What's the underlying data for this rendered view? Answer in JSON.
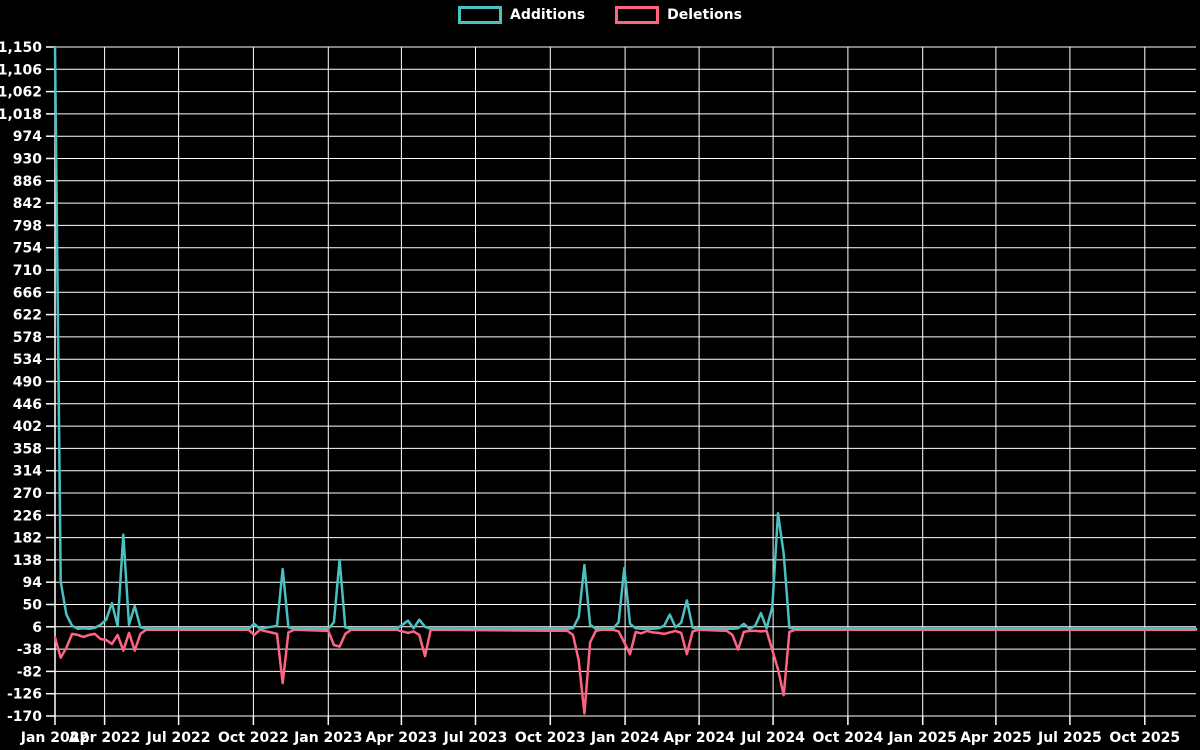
{
  "legend": {
    "position": "top",
    "items": [
      {
        "label": "Additions",
        "color": "#4bc0c0"
      },
      {
        "label": "Deletions",
        "color": "#ff6384"
      }
    ]
  },
  "chart_data": {
    "type": "line",
    "title": "",
    "background": "#000000",
    "grid_color": "#ffffff",
    "text_color": "#ffffff",
    "grid": true,
    "x_axis": {
      "type": "time",
      "min": "2022-01-30",
      "max": "2025-12-03",
      "ticks": [
        {
          "label": "Jan 2022",
          "date": "2022-01-30"
        },
        {
          "label": "Apr 2022",
          "date": "2022-04-01"
        },
        {
          "label": "Jul 2022",
          "date": "2022-07-01"
        },
        {
          "label": "Oct 2022",
          "date": "2022-10-01"
        },
        {
          "label": "Jan 2023",
          "date": "2023-01-01"
        },
        {
          "label": "Apr 2023",
          "date": "2023-04-01"
        },
        {
          "label": "Jul 2023",
          "date": "2023-07-01"
        },
        {
          "label": "Oct 2023",
          "date": "2023-10-01"
        },
        {
          "label": "Jan 2024",
          "date": "2024-01-01"
        },
        {
          "label": "Apr 2024",
          "date": "2024-04-01"
        },
        {
          "label": "Jul 2024",
          "date": "2024-07-01"
        },
        {
          "label": "Oct 2024",
          "date": "2024-10-01"
        },
        {
          "label": "Jan 2025",
          "date": "2025-01-01"
        },
        {
          "label": "Apr 2025",
          "date": "2025-04-01"
        },
        {
          "label": "Jul 2025",
          "date": "2025-07-01"
        },
        {
          "label": "Oct 2025",
          "date": "2025-10-01"
        }
      ]
    },
    "y_axis": {
      "min": -170,
      "max": 1150,
      "tick_step": 44,
      "ticks": [
        1150,
        1106,
        1062,
        1018,
        974,
        930,
        886,
        842,
        798,
        754,
        710,
        666,
        622,
        578,
        534,
        490,
        446,
        402,
        358,
        314,
        270,
        226,
        182,
        138,
        94,
        50,
        6,
        -38,
        -82,
        -126,
        -170
      ]
    },
    "series": [
      {
        "name": "Additions",
        "color": "#4bc0c0",
        "points": [
          [
            "2022-01-30",
            1150
          ],
          [
            "2022-02-06",
            95
          ],
          [
            "2022-02-13",
            30
          ],
          [
            "2022-02-20",
            8
          ],
          [
            "2022-02-27",
            2
          ],
          [
            "2022-03-06",
            3
          ],
          [
            "2022-03-13",
            2
          ],
          [
            "2022-03-20",
            4
          ],
          [
            "2022-03-27",
            10
          ],
          [
            "2022-04-03",
            20
          ],
          [
            "2022-04-10",
            53
          ],
          [
            "2022-04-17",
            8
          ],
          [
            "2022-04-24",
            188
          ],
          [
            "2022-05-01",
            10
          ],
          [
            "2022-05-08",
            47
          ],
          [
            "2022-05-15",
            5
          ],
          [
            "2022-05-22",
            2
          ],
          [
            "2022-09-25",
            2
          ],
          [
            "2022-10-02",
            12
          ],
          [
            "2022-10-09",
            2
          ],
          [
            "2022-10-30",
            8
          ],
          [
            "2022-11-06",
            120
          ],
          [
            "2022-11-13",
            5
          ],
          [
            "2022-11-20",
            2
          ],
          [
            "2023-01-01",
            2
          ],
          [
            "2023-01-08",
            15
          ],
          [
            "2023-01-15",
            138
          ],
          [
            "2023-01-22",
            5
          ],
          [
            "2023-01-29",
            2
          ],
          [
            "2023-03-26",
            2
          ],
          [
            "2023-04-02",
            10
          ],
          [
            "2023-04-09",
            18
          ],
          [
            "2023-04-16",
            3
          ],
          [
            "2023-04-23",
            20
          ],
          [
            "2023-04-30",
            6
          ],
          [
            "2023-05-07",
            2
          ],
          [
            "2023-10-22",
            2
          ],
          [
            "2023-10-29",
            3
          ],
          [
            "2023-11-05",
            25
          ],
          [
            "2023-11-12",
            128
          ],
          [
            "2023-11-19",
            10
          ],
          [
            "2023-11-26",
            2
          ],
          [
            "2023-12-17",
            2
          ],
          [
            "2023-12-24",
            15
          ],
          [
            "2023-12-31",
            122
          ],
          [
            "2024-01-07",
            12
          ],
          [
            "2024-01-14",
            3
          ],
          [
            "2024-01-21",
            2
          ],
          [
            "2024-02-04",
            2
          ],
          [
            "2024-02-11",
            3
          ],
          [
            "2024-02-18",
            8
          ],
          [
            "2024-02-25",
            30
          ],
          [
            "2024-03-03",
            5
          ],
          [
            "2024-03-10",
            14
          ],
          [
            "2024-03-17",
            58
          ],
          [
            "2024-03-24",
            4
          ],
          [
            "2024-03-31",
            2
          ],
          [
            "2024-05-05",
            2
          ],
          [
            "2024-05-12",
            2
          ],
          [
            "2024-05-19",
            3
          ],
          [
            "2024-05-26",
            12
          ],
          [
            "2024-06-02",
            2
          ],
          [
            "2024-06-09",
            8
          ],
          [
            "2024-06-16",
            33
          ],
          [
            "2024-06-23",
            3
          ],
          [
            "2024-06-30",
            45
          ],
          [
            "2024-07-07",
            230
          ],
          [
            "2024-07-14",
            150
          ],
          [
            "2024-07-21",
            4
          ],
          [
            "2024-07-28",
            2
          ],
          [
            "2025-12-03",
            2
          ]
        ]
      },
      {
        "name": "Deletions",
        "color": "#ff6384",
        "points": [
          [
            "2022-01-30",
            -15
          ],
          [
            "2022-02-06",
            -55
          ],
          [
            "2022-02-13",
            -35
          ],
          [
            "2022-02-20",
            -8
          ],
          [
            "2022-02-27",
            -10
          ],
          [
            "2022-03-06",
            -14
          ],
          [
            "2022-03-13",
            -10
          ],
          [
            "2022-03-20",
            -8
          ],
          [
            "2022-03-27",
            -18
          ],
          [
            "2022-04-03",
            -20
          ],
          [
            "2022-04-10",
            -28
          ],
          [
            "2022-04-17",
            -10
          ],
          [
            "2022-04-24",
            -41
          ],
          [
            "2022-05-01",
            -6
          ],
          [
            "2022-05-08",
            -41
          ],
          [
            "2022-05-15",
            -8
          ],
          [
            "2022-05-22",
            0
          ],
          [
            "2022-09-25",
            0
          ],
          [
            "2022-10-02",
            -10
          ],
          [
            "2022-10-09",
            0
          ],
          [
            "2022-10-30",
            -8
          ],
          [
            "2022-11-06",
            -105
          ],
          [
            "2022-11-13",
            -5
          ],
          [
            "2022-11-20",
            0
          ],
          [
            "2023-01-01",
            -2
          ],
          [
            "2023-01-08",
            -30
          ],
          [
            "2023-01-15",
            -33
          ],
          [
            "2023-01-22",
            -8
          ],
          [
            "2023-01-29",
            0
          ],
          [
            "2023-03-26",
            0
          ],
          [
            "2023-04-02",
            -3
          ],
          [
            "2023-04-09",
            -6
          ],
          [
            "2023-04-16",
            -3
          ],
          [
            "2023-04-23",
            -10
          ],
          [
            "2023-04-30",
            -52
          ],
          [
            "2023-05-07",
            0
          ],
          [
            "2023-10-22",
            -2
          ],
          [
            "2023-10-29",
            -10
          ],
          [
            "2023-11-05",
            -60
          ],
          [
            "2023-11-12",
            -165
          ],
          [
            "2023-11-19",
            -25
          ],
          [
            "2023-11-26",
            -2
          ],
          [
            "2023-12-03",
            0
          ],
          [
            "2023-12-17",
            0
          ],
          [
            "2023-12-24",
            -3
          ],
          [
            "2023-12-31",
            -25
          ],
          [
            "2024-01-07",
            -48
          ],
          [
            "2024-01-14",
            -4
          ],
          [
            "2024-01-21",
            -7
          ],
          [
            "2024-01-28",
            -2
          ],
          [
            "2024-02-04",
            -5
          ],
          [
            "2024-02-11",
            -6
          ],
          [
            "2024-02-18",
            -8
          ],
          [
            "2024-02-25",
            -5
          ],
          [
            "2024-03-03",
            -2
          ],
          [
            "2024-03-10",
            -6
          ],
          [
            "2024-03-17",
            -48
          ],
          [
            "2024-03-24",
            -3
          ],
          [
            "2024-03-31",
            0
          ],
          [
            "2024-05-05",
            -2
          ],
          [
            "2024-05-12",
            -10
          ],
          [
            "2024-05-19",
            -39
          ],
          [
            "2024-05-26",
            -4
          ],
          [
            "2024-06-02",
            -2
          ],
          [
            "2024-06-09",
            -2
          ],
          [
            "2024-06-16",
            -3
          ],
          [
            "2024-06-23",
            -2
          ],
          [
            "2024-06-30",
            -40
          ],
          [
            "2024-07-07",
            -78
          ],
          [
            "2024-07-14",
            -129
          ],
          [
            "2024-07-21",
            -4
          ],
          [
            "2024-07-28",
            0
          ],
          [
            "2025-12-03",
            0
          ]
        ]
      }
    ]
  }
}
